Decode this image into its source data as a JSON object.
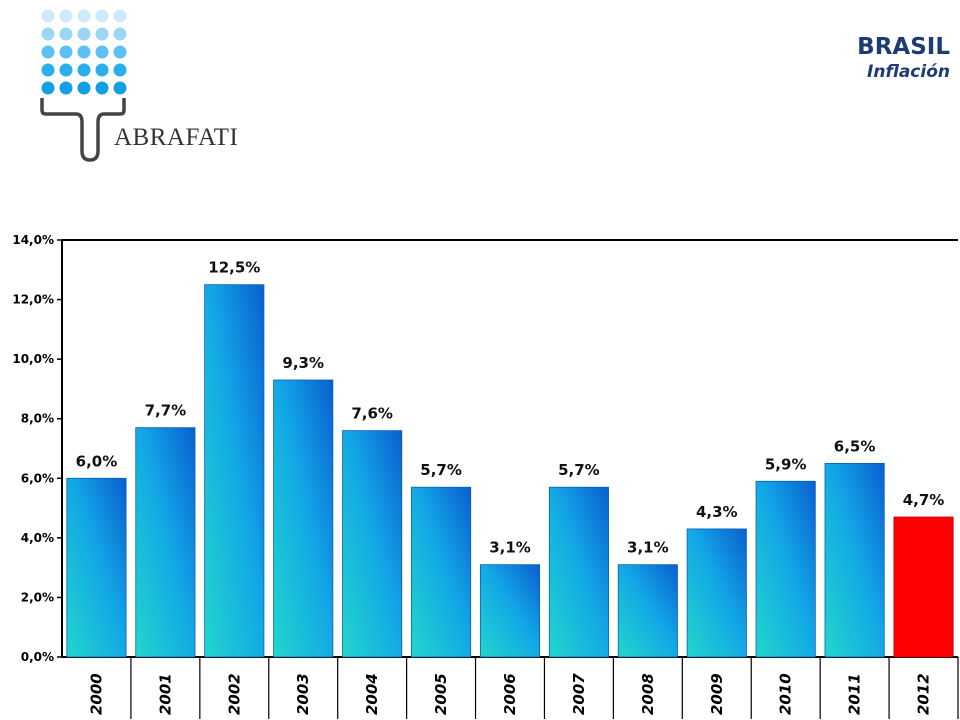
{
  "header": {
    "logo_text": "ABRAFATI",
    "title": "BRASIL",
    "subtitle": "Inflación"
  },
  "colors": {
    "bar_gradient_top": "#0a6fd8",
    "bar_gradient_bottom": "#22d6cc",
    "highlight_bar": "#ff0000",
    "title": "#1f3b73",
    "logo_dots": "#1aa6ea"
  },
  "chart_data": {
    "type": "bar",
    "title": "",
    "xlabel": "",
    "ylabel": "",
    "categories": [
      "2000",
      "2001",
      "2002",
      "2003",
      "2004",
      "2005",
      "2006",
      "2007",
      "2008",
      "2009",
      "2010",
      "2011",
      "2012"
    ],
    "values": [
      6.0,
      7.7,
      12.5,
      9.3,
      7.6,
      5.7,
      3.1,
      5.7,
      3.1,
      4.3,
      5.9,
      6.5,
      4.7
    ],
    "data_labels": [
      "6,0%",
      "7,7%",
      "12,5%",
      "9,3%",
      "7,6%",
      "5,7%",
      "3,1%",
      "5,7%",
      "3,1%",
      "4,3%",
      "5,9%",
      "6,5%",
      "4,7%"
    ],
    "highlight_index": 12,
    "ylim": [
      0,
      14
    ],
    "yticks": [
      0,
      2,
      4,
      6,
      8,
      10,
      12,
      14
    ],
    "ytick_labels": [
      "0,0%",
      "2,0%",
      "4,0%",
      "6,0%",
      "8,0%",
      "10,0%",
      "12,0%",
      "14,0%"
    ],
    "grid": false,
    "legend": "none"
  }
}
